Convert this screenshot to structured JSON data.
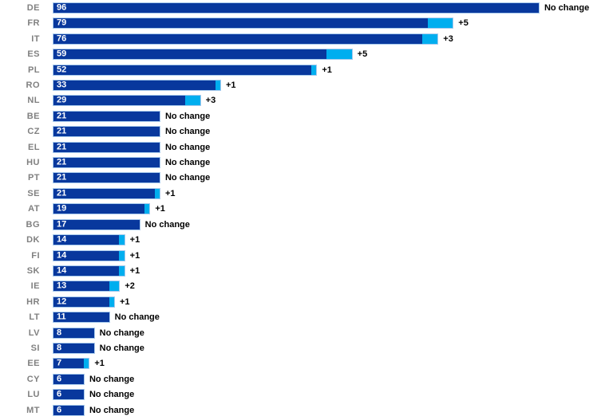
{
  "chart_data": {
    "type": "bar",
    "orientation": "horizontal",
    "title": "",
    "xlabel": "",
    "ylabel": "",
    "xlim": [
      0,
      96
    ],
    "grid": false,
    "legend": null,
    "axes_visible": false,
    "description": "Seats per country shown as stacked horizontal bars: dark segment = previous seats, light segment = seats added; white number = new total; right label = change",
    "categories": [
      "DE",
      "FR",
      "IT",
      "ES",
      "PL",
      "RO",
      "NL",
      "BE",
      "CZ",
      "EL",
      "HU",
      "PT",
      "SE",
      "AT",
      "BG",
      "DK",
      "FI",
      "SK",
      "IE",
      "HR",
      "LT",
      "LV",
      "SI",
      "EE",
      "CY",
      "LU",
      "MT"
    ],
    "series": [
      {
        "name": "previous_seats",
        "values": [
          96,
          74,
          73,
          54,
          51,
          32,
          26,
          21,
          21,
          21,
          21,
          21,
          20,
          18,
          17,
          13,
          13,
          13,
          11,
          11,
          11,
          8,
          8,
          6,
          6,
          6,
          6
        ]
      },
      {
        "name": "added_seats",
        "values": [
          0,
          5,
          3,
          5,
          1,
          1,
          3,
          0,
          0,
          0,
          0,
          0,
          1,
          1,
          0,
          1,
          1,
          1,
          2,
          1,
          0,
          0,
          0,
          1,
          0,
          0,
          0
        ]
      }
    ],
    "rows": [
      {
        "code": "DE",
        "total": 96,
        "change": 0,
        "change_label": "No change"
      },
      {
        "code": "FR",
        "total": 79,
        "change": 5,
        "change_label": "+5"
      },
      {
        "code": "IT",
        "total": 76,
        "change": 3,
        "change_label": "+3"
      },
      {
        "code": "ES",
        "total": 59,
        "change": 5,
        "change_label": "+5"
      },
      {
        "code": "PL",
        "total": 52,
        "change": 1,
        "change_label": "+1"
      },
      {
        "code": "RO",
        "total": 33,
        "change": 1,
        "change_label": "+1"
      },
      {
        "code": "NL",
        "total": 29,
        "change": 3,
        "change_label": "+3"
      },
      {
        "code": "BE",
        "total": 21,
        "change": 0,
        "change_label": "No change"
      },
      {
        "code": "CZ",
        "total": 21,
        "change": 0,
        "change_label": "No change"
      },
      {
        "code": "EL",
        "total": 21,
        "change": 0,
        "change_label": "No change"
      },
      {
        "code": "HU",
        "total": 21,
        "change": 0,
        "change_label": "No change"
      },
      {
        "code": "PT",
        "total": 21,
        "change": 0,
        "change_label": "No change"
      },
      {
        "code": "SE",
        "total": 21,
        "change": 1,
        "change_label": "+1"
      },
      {
        "code": "AT",
        "total": 19,
        "change": 1,
        "change_label": "+1"
      },
      {
        "code": "BG",
        "total": 17,
        "change": 0,
        "change_label": "No change"
      },
      {
        "code": "DK",
        "total": 14,
        "change": 1,
        "change_label": "+1"
      },
      {
        "code": "FI",
        "total": 14,
        "change": 1,
        "change_label": "+1"
      },
      {
        "code": "SK",
        "total": 14,
        "change": 1,
        "change_label": "+1"
      },
      {
        "code": "IE",
        "total": 13,
        "change": 2,
        "change_label": "+2"
      },
      {
        "code": "HR",
        "total": 12,
        "change": 1,
        "change_label": "+1"
      },
      {
        "code": "LT",
        "total": 11,
        "change": 0,
        "change_label": "No change"
      },
      {
        "code": "LV",
        "total": 8,
        "change": 0,
        "change_label": "No change"
      },
      {
        "code": "SI",
        "total": 8,
        "change": 0,
        "change_label": "No change"
      },
      {
        "code": "EE",
        "total": 7,
        "change": 1,
        "change_label": "+1"
      },
      {
        "code": "CY",
        "total": 6,
        "change": 0,
        "change_label": "No change"
      },
      {
        "code": "LU",
        "total": 6,
        "change": 0,
        "change_label": "No change"
      },
      {
        "code": "MT",
        "total": 6,
        "change": 0,
        "change_label": "No change"
      }
    ],
    "colors": {
      "previous_seats_bar": "#08389d",
      "added_seats_bar": "#00aeef",
      "bar_border": "#a6c9ec",
      "country_label": "#808080",
      "total_value_label": "#ffffff",
      "change_label": "#000000",
      "background": "#ffffff"
    }
  }
}
